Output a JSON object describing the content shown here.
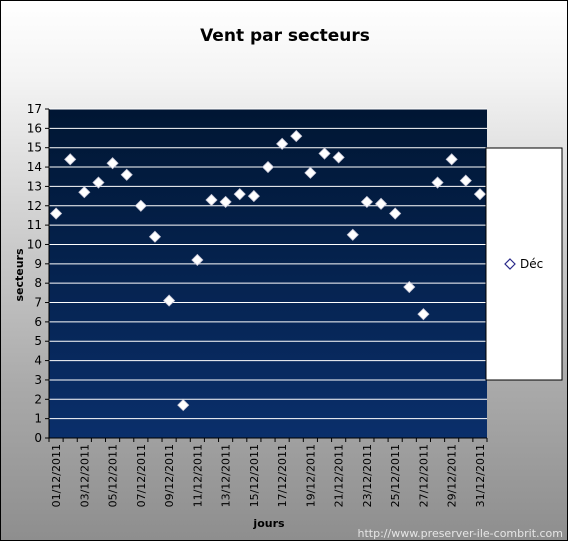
{
  "chart_data": {
    "type": "scatter",
    "title": "Vent par secteurs",
    "xlabel": "jours",
    "ylabel": "secteurs",
    "ylim": [
      0,
      17
    ],
    "y_ticks": [
      0,
      1,
      2,
      3,
      4,
      5,
      6,
      7,
      8,
      9,
      10,
      11,
      12,
      13,
      14,
      15,
      16,
      17
    ],
    "x_tick_labels": [
      "01/12/2011",
      "03/12/2011",
      "05/12/2011",
      "07/12/2011",
      "09/12/2011",
      "11/12/2011",
      "13/12/2011",
      "15/12/2011",
      "17/12/2011",
      "19/12/2011",
      "21/12/2011",
      "23/12/2011",
      "25/12/2011",
      "27/12/2011",
      "29/12/2011",
      "31/12/2011"
    ],
    "grid": true,
    "legend_position": "right",
    "series": [
      {
        "name": "Déc",
        "marker": "diamond",
        "color": "#ffffff",
        "x": [
          "01/12/2011",
          "02/12/2011",
          "03/12/2011",
          "04/12/2011",
          "05/12/2011",
          "06/12/2011",
          "07/12/2011",
          "08/12/2011",
          "09/12/2011",
          "10/12/2011",
          "11/12/2011",
          "12/12/2011",
          "13/12/2011",
          "14/12/2011",
          "15/12/2011",
          "16/12/2011",
          "17/12/2011",
          "18/12/2011",
          "19/12/2011",
          "20/12/2011",
          "21/12/2011",
          "22/12/2011",
          "23/12/2011",
          "24/12/2011",
          "25/12/2011",
          "26/12/2011",
          "27/12/2011",
          "28/12/2011",
          "29/12/2011",
          "30/12/2011",
          "31/12/2011"
        ],
        "values": [
          11.6,
          14.4,
          12.7,
          13.2,
          14.2,
          13.6,
          12.0,
          10.4,
          7.1,
          1.7,
          9.2,
          12.3,
          12.2,
          12.6,
          12.5,
          14.0,
          15.2,
          15.6,
          13.7,
          14.7,
          14.5,
          10.5,
          12.2,
          12.1,
          11.6,
          7.8,
          6.4,
          13.2,
          14.4,
          13.3,
          12.6
        ]
      }
    ]
  },
  "watermark": "http://www.preserver-ile-combrit.com",
  "colors": {
    "plot_top": "#001633",
    "plot_bottom": "#0a2f6b",
    "gridline": "#ffffff",
    "marker_fill": "#ffffff",
    "legend_marker": "#2a2a8a"
  }
}
